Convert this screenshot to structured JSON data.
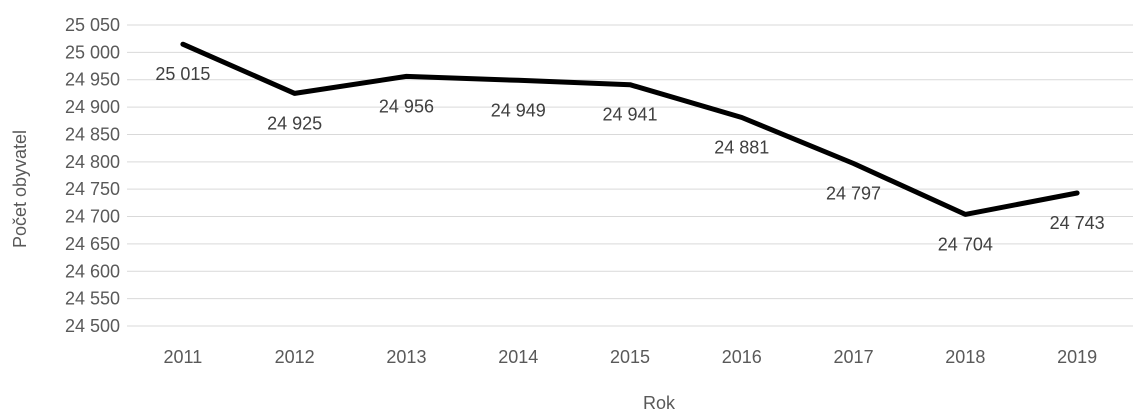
{
  "chart_data": {
    "type": "line",
    "title": "",
    "xlabel": "Rok",
    "ylabel": "Počet obyvatel",
    "categories": [
      "2011",
      "2012",
      "2013",
      "2014",
      "2015",
      "2016",
      "2017",
      "2018",
      "2019"
    ],
    "series": [
      {
        "values": [
          25015,
          24925,
          24956,
          24949,
          24941,
          24881,
          24797,
          24704,
          24743
        ],
        "labels": [
          "25 015",
          "24 925",
          "24 956",
          "24 949",
          "24 941",
          "24 881",
          "24 797",
          "24 704",
          "24 743"
        ],
        "color": "#000000"
      }
    ],
    "ylim": [
      24500,
      25050
    ],
    "ytick_step": 50,
    "ytick_labels": [
      "24 500",
      "24 550",
      "24 600",
      "24 650",
      "24 700",
      "24 750",
      "24 800",
      "24 850",
      "24 900",
      "24 950",
      "25 000",
      "25 050"
    ],
    "grid": true,
    "gridline_color": "#d9d9d9",
    "legend": "none"
  }
}
